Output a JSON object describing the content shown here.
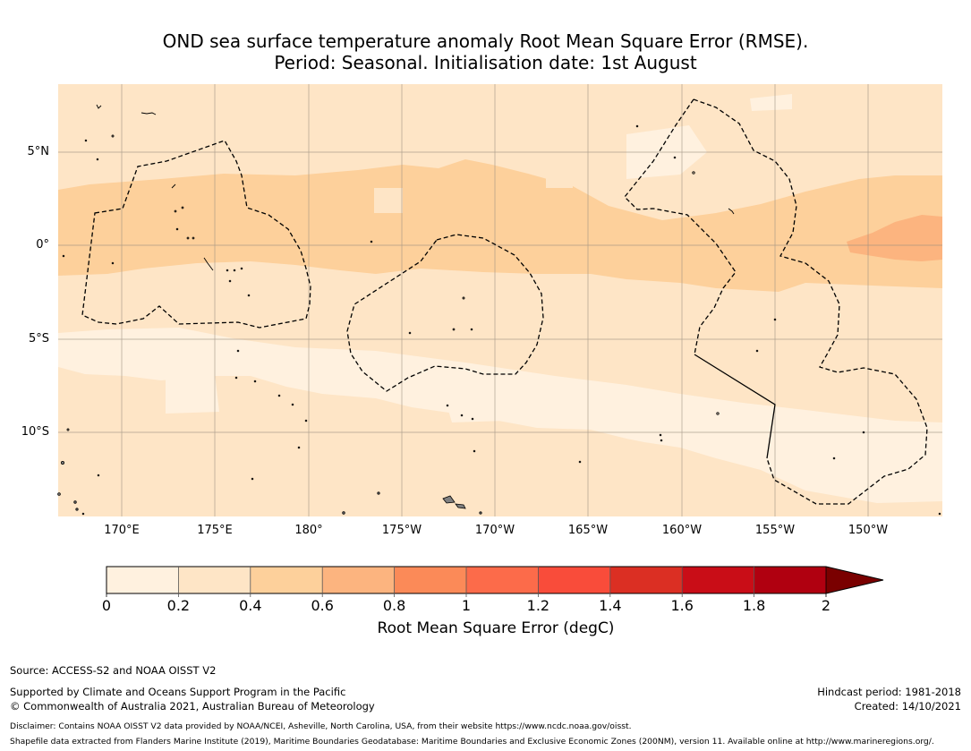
{
  "title": {
    "line1": "OND sea surface temperature anomaly Root Mean Square Error (RMSE).",
    "line2": "Period: Seasonal. Initialisation date: 1st August"
  },
  "map": {
    "lat_labels": [
      "5°N",
      "0°",
      "5°S",
      "10°S"
    ],
    "lon_labels": [
      "170°E",
      "175°E",
      "180°",
      "175°W",
      "170°W",
      "165°W",
      "160°W",
      "155°W",
      "150°W"
    ],
    "extent": {
      "lon_min": 166.5,
      "lon_max": 213.5,
      "lat_min": -14.5,
      "lat_max": 8.6
    },
    "colors": {
      "bin_0_0.2": "#fff1df",
      "bin_0.2_0.4": "#fee5c6",
      "bin_0.4_0.6": "#fdd09b",
      "bin_0.6_0.8": "#fcb47f",
      "grid": "#9a8f80",
      "boundary": "#000000",
      "land": "#808080"
    }
  },
  "colorbar": {
    "ticks": [
      "0",
      "0.2",
      "0.4",
      "0.6",
      "0.8",
      "1",
      "1.2",
      "1.4",
      "1.6",
      "1.8",
      "2"
    ],
    "colors": [
      "#fff1df",
      "#fee5c6",
      "#fdd09b",
      "#fcb47f",
      "#fb8a58",
      "#fc6b4a",
      "#f94c3a",
      "#db2f23",
      "#c90d17",
      "#b00010",
      "#7a0000"
    ],
    "label": "Root Mean Square Error (degC)"
  },
  "footer": {
    "source": "Source: ACCESS-S2 and NOAA OISST V2",
    "supported": "Supported by Climate and Oceans Support Program in the Pacific",
    "copyright": "© Commonwealth of Australia 2021, Australian Bureau of Meteorology",
    "hindcast": "Hindcast period: 1981-2018",
    "created": "Created: 14/10/2021",
    "disclaimer": "Disclaimer: Contains NOAA OISST V2 data provided by NOAA/NCEI, Asheville, North Carolina, USA, from their website https://www.ncdc.noaa.gov/oisst.",
    "shapefile": "Shapefile data extracted from Flanders Marine Institute (2019), Maritime Boundaries Geodatabase: Maritime Boundaries and Exclusive Economic Zones (200NM), version 11. Available online at http://www.marineregions.org/."
  }
}
